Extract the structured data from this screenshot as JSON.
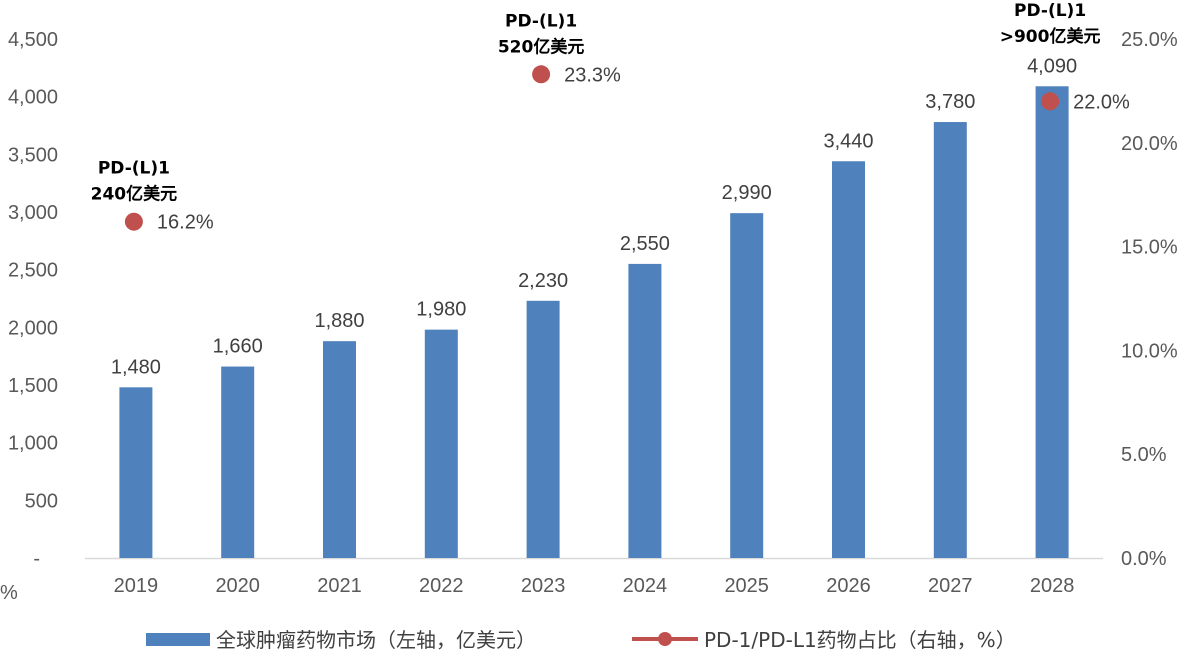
{
  "chart_data": {
    "type": "bar",
    "categories": [
      "2019",
      "2020",
      "2021",
      "2022",
      "2023",
      "2024",
      "2025",
      "2026",
      "2027",
      "2028"
    ],
    "series": [
      {
        "name": "全球肿瘤药物市场（左轴，亿美元）",
        "axis": "left",
        "values": [
          1480,
          1660,
          1880,
          1980,
          2230,
          2550,
          2990,
          3440,
          3780,
          4090
        ],
        "labels": [
          "1,480",
          "1,660",
          "1,880",
          "1,980",
          "2,230",
          "2,550",
          "2,990",
          "3,440",
          "3,780",
          "4,090"
        ],
        "color": "#4f81bd"
      },
      {
        "name": "PD-1/PD-L1药物占比（右轴，%）",
        "axis": "right",
        "points": [
          {
            "category": "2019",
            "value": 16.2,
            "label": "16.2%"
          },
          {
            "category": "2023",
            "value": 23.3,
            "label": "23.3%"
          },
          {
            "category": "2028",
            "value": 22.0,
            "label": "22.0%"
          }
        ],
        "color": "#c0504d"
      }
    ],
    "left_axis": {
      "ylim": [
        0,
        4500
      ],
      "ticks": [
        "-",
        "500",
        "1,000",
        "1,500",
        "2,000",
        "2,500",
        "3,000",
        "3,500",
        "4,000",
        "4,500"
      ]
    },
    "right_axis": {
      "ylim": [
        0,
        25
      ],
      "ticks": [
        "0.0%",
        "5.0%",
        "10.0%",
        "15.0%",
        "20.0%",
        "25.0%"
      ]
    },
    "left_unit_fragment": "%",
    "annotations": [
      {
        "category": "2019",
        "lines": [
          "PD-(L)1",
          "240亿美元"
        ]
      },
      {
        "category": "2023",
        "lines": [
          "PD-(L)1",
          "520亿美元"
        ]
      },
      {
        "category": "2028",
        "lines": [
          "PD-(L)1",
          ">900亿美元"
        ]
      }
    ],
    "legend_position": "bottom",
    "grid": false
  }
}
